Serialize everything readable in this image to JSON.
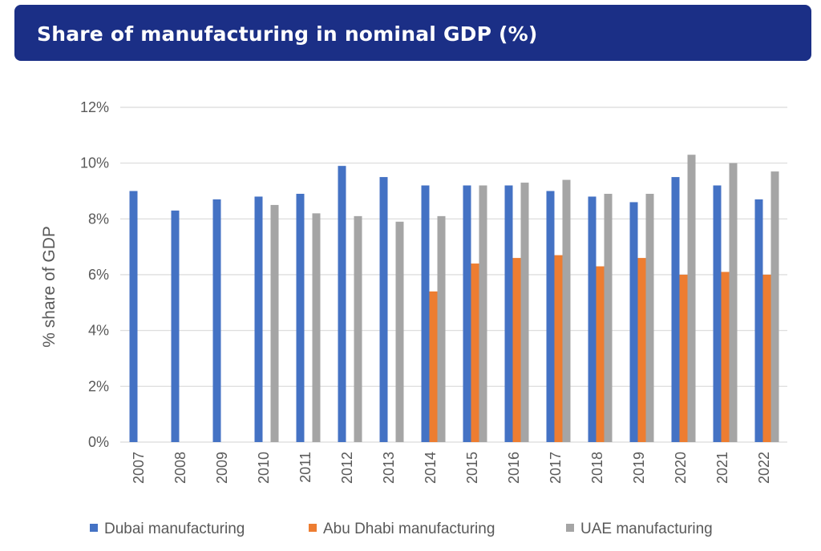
{
  "header": {
    "title": "Share of manufacturing in nominal GDP (%)"
  },
  "colors": {
    "banner": "#1b2f86",
    "dubai": "#4472c4",
    "abu_dhabi": "#ed7d31",
    "uae": "#a5a5a5",
    "grid": "#d9d9d9",
    "text": "#595959"
  },
  "chart_data": {
    "type": "bar",
    "title": "",
    "xlabel": "",
    "ylabel": "% share of GDP",
    "ylim": [
      0,
      12
    ],
    "yticks": [
      "0%",
      "2%",
      "4%",
      "6%",
      "8%",
      "10%",
      "12%"
    ],
    "grid": true,
    "legend_position": "bottom",
    "categories": [
      "2007",
      "2008",
      "2009",
      "2010",
      "2011",
      "2012",
      "2013",
      "2014",
      "2015",
      "2016",
      "2017",
      "2018",
      "2019",
      "2020",
      "2021",
      "2022"
    ],
    "series": [
      {
        "name": "Dubai manufacturing",
        "color": "#4472c4",
        "values": [
          9.0,
          8.3,
          8.7,
          8.8,
          8.9,
          9.9,
          9.5,
          9.2,
          9.2,
          9.2,
          9.0,
          8.8,
          8.6,
          9.5,
          9.2,
          8.7
        ]
      },
      {
        "name": "Abu Dhabi manufacturing",
        "color": "#ed7d31",
        "values": [
          null,
          null,
          null,
          null,
          null,
          null,
          null,
          5.4,
          6.4,
          6.6,
          6.7,
          6.3,
          6.6,
          6.0,
          6.1,
          6.0
        ]
      },
      {
        "name": "UAE manufacturing",
        "color": "#a5a5a5",
        "values": [
          null,
          null,
          null,
          8.5,
          8.2,
          8.1,
          7.9,
          8.1,
          9.2,
          9.3,
          9.4,
          8.9,
          8.9,
          10.3,
          10.0,
          9.7
        ]
      }
    ]
  }
}
